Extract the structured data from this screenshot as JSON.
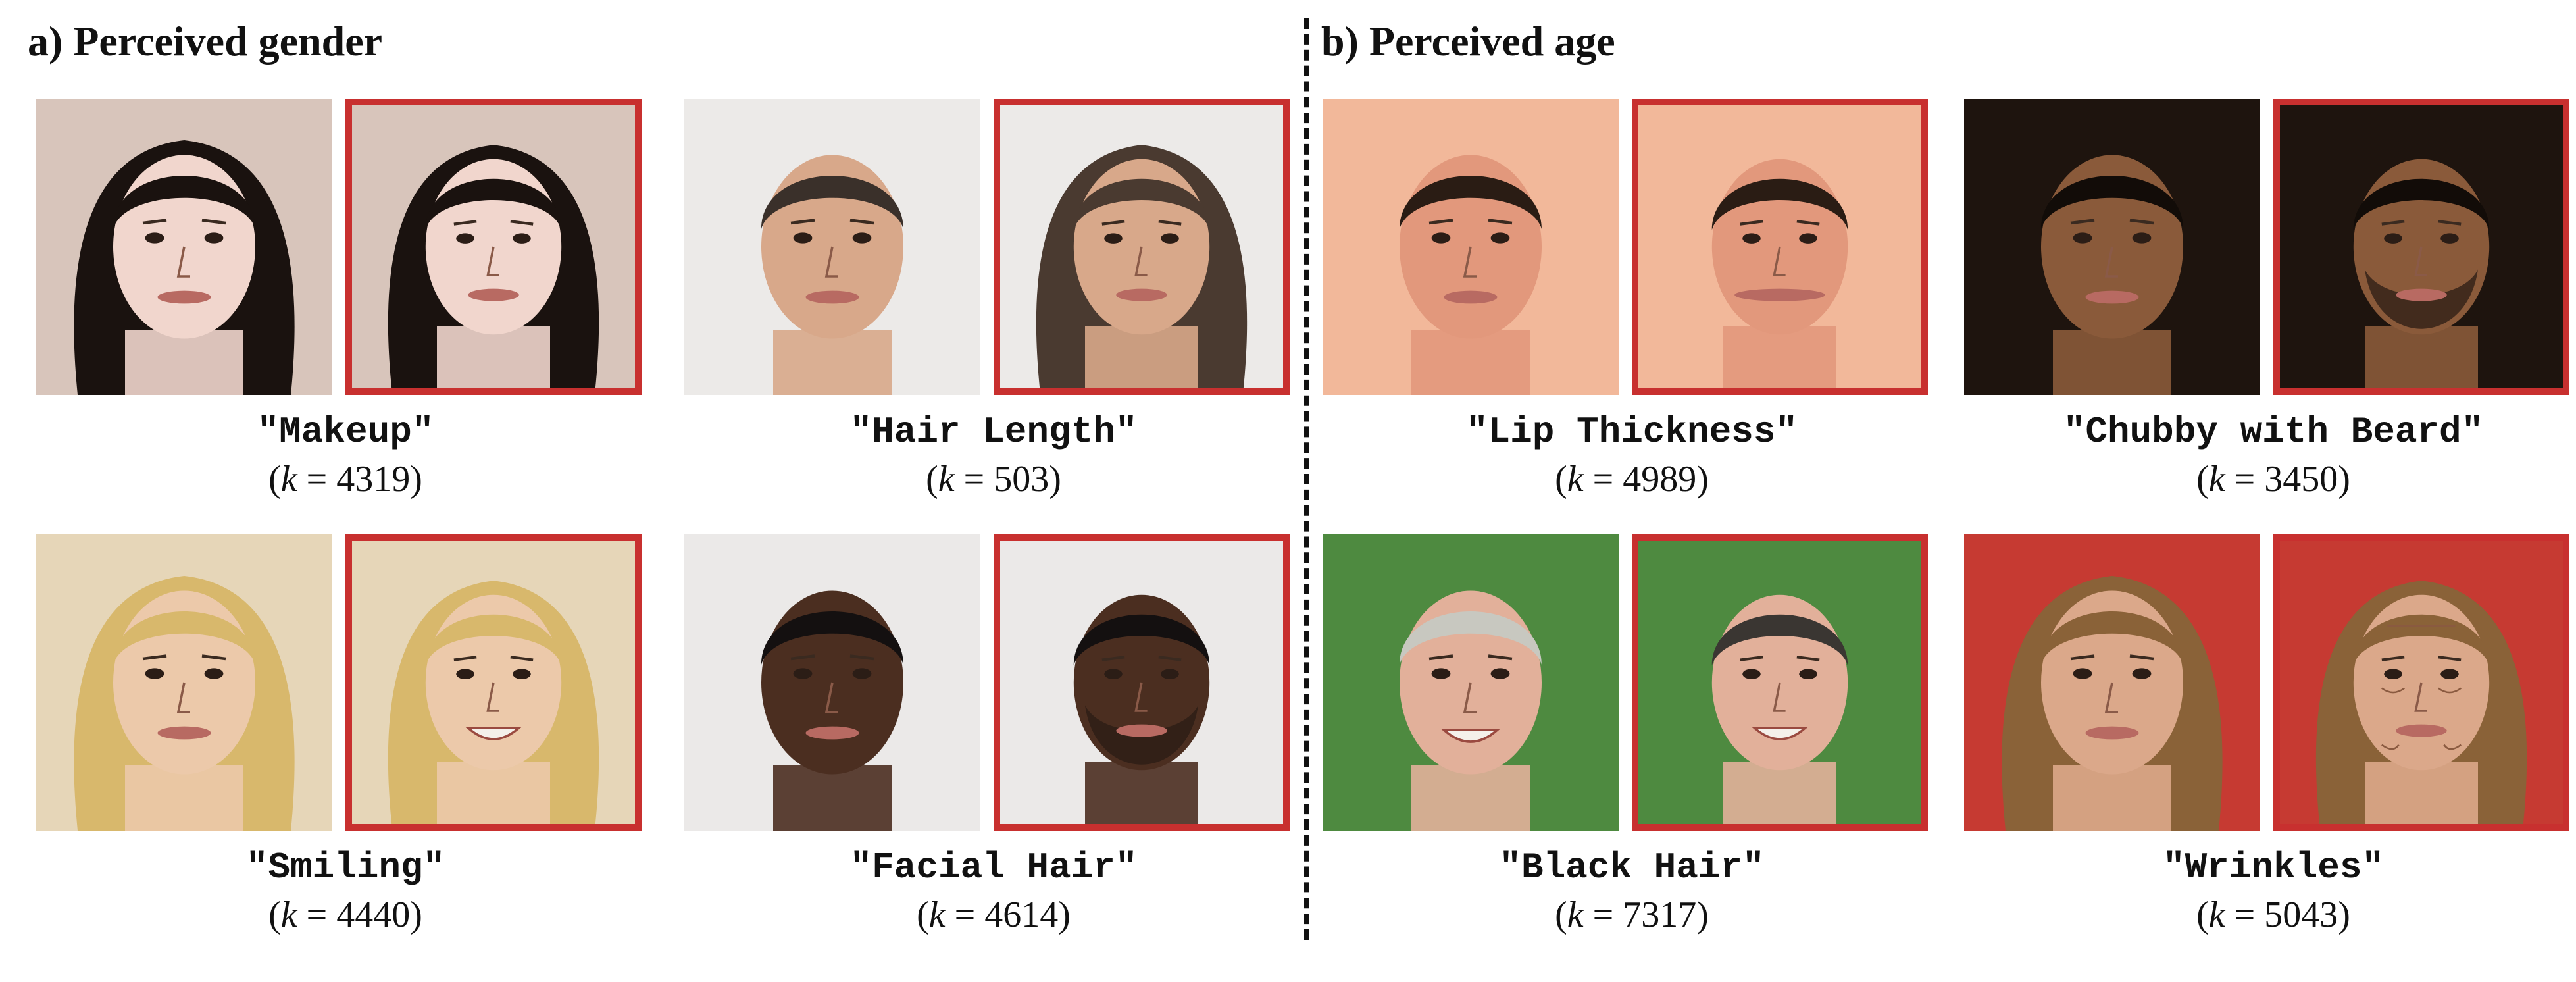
{
  "sections": {
    "a_title": "a) Perceived gender",
    "b_title": "b) Perceived age"
  },
  "panels": [
    {
      "label": "\"Makeup\"",
      "k": "4319",
      "bg": "#d8c5bb",
      "skin": "#f1d6cd",
      "hair": "#1a120f",
      "hair_edit": "#1a120f",
      "icon": "face-makeup"
    },
    {
      "label": "\"Hair Length\"",
      "k": "503",
      "bg": "#eceae8",
      "skin": "#d8a88a",
      "hair": "#3a302a",
      "hair_edit": "#4a3a30",
      "icon": "face-hair-length"
    },
    {
      "label": "\"Lip Thickness\"",
      "k": "4989",
      "bg": "#f2b89a",
      "skin": "#e2987c",
      "hair": "#2a1c14",
      "hair_edit": "#2a1c14",
      "icon": "face-lip-thickness"
    },
    {
      "label": "\"Chubby with Beard\"",
      "k": "3450",
      "bg": "#1e140e",
      "skin": "#8a5a3a",
      "hair": "#120c08",
      "hair_edit": "#120c08",
      "icon": "face-chubby-beard"
    },
    {
      "label": "\"Smiling\"",
      "k": "4440",
      "bg": "#e6d6b8",
      "skin": "#ecc9aa",
      "hair": "#d8b86c",
      "hair_edit": "#d8b86c",
      "icon": "face-smiling"
    },
    {
      "label": "\"Facial Hair\"",
      "k": "4614",
      "bg": "#ebe9e8",
      "skin": "#4b2e20",
      "hair": "#141010",
      "hair_edit": "#141010",
      "icon": "face-facial-hair"
    },
    {
      "label": "\"Black Hair\"",
      "k": "7317",
      "bg": "#4e8a40",
      "skin": "#e2b09a",
      "hair": "#c8c8c0",
      "hair_edit": "#3a3632",
      "icon": "face-black-hair"
    },
    {
      "label": "\"Wrinkles\"",
      "k": "5043",
      "bg": "#c63a32",
      "skin": "#dba88a",
      "hair": "#8a6238",
      "hair_edit": "#8a6238",
      "icon": "face-wrinkles"
    }
  ],
  "colors": {
    "edit_border": "#c8302f"
  }
}
